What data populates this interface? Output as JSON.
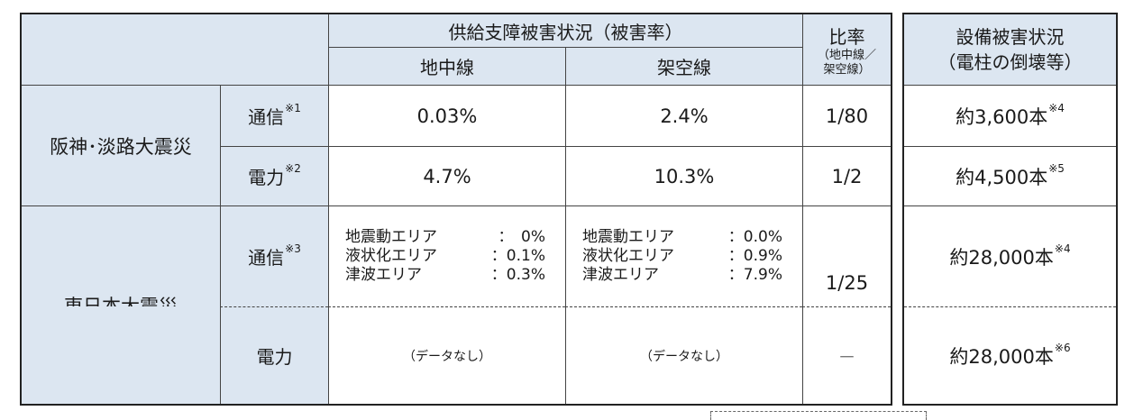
{
  "header": {
    "supply_title": "供給支障被害状況（被害率）",
    "underground": "地中線",
    "overhead": "架空線",
    "ratio_title": "比率",
    "ratio_note_line1": "（地中線／",
    "ratio_note_line2": "架空線）",
    "equip_title_line1": "設備被害状況",
    "equip_title_line2": "（電柱の倒壊等）"
  },
  "hanshin": {
    "label": "阪神･淡路大震災",
    "telecom": {
      "label": "通信",
      "note": "※1",
      "underground": "0.03%",
      "overhead": "2.4%",
      "ratio": "1/80",
      "equip_value": "約3,600本",
      "equip_note": "※4"
    },
    "power": {
      "label": "電力",
      "note": "※2",
      "underground": "4.7%",
      "overhead": "10.3%",
      "ratio": "1/2",
      "equip_value": "約4,500本",
      "equip_note": "※5"
    }
  },
  "higashi": {
    "label": "東日本大震災",
    "telecom": {
      "label": "通信",
      "note": "※3",
      "underground": [
        {
          "area": "地震動エリア",
          "value": "：　0%"
        },
        {
          "area": "液状化エリア",
          "value": "：0.1%"
        },
        {
          "area": "津波エリア",
          "value": "：0.3%"
        }
      ],
      "overhead": [
        {
          "area": "地震動エリア",
          "value": "：0.0%"
        },
        {
          "area": "液状化エリア",
          "value": "：0.9%"
        },
        {
          "area": "津波エリア",
          "value": "：7.9%"
        }
      ],
      "ratio": "1/25",
      "equip_value": "約28,000本",
      "equip_note": "※4"
    },
    "power": {
      "label": "電力",
      "underground": "（データなし）",
      "overhead": "（データなし）",
      "ratio": "－",
      "equip_value": "約28,000本",
      "equip_note": "※6"
    }
  }
}
